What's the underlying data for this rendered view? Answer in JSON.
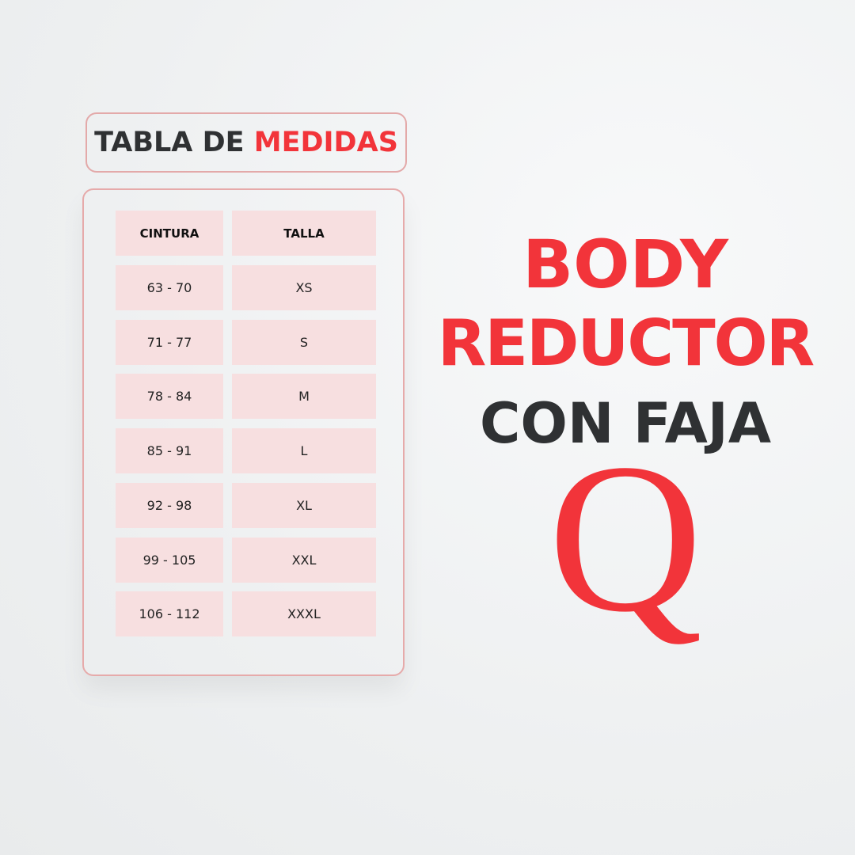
{
  "title": {
    "part1": "TABLA DE",
    "part2": "MEDIDAS"
  },
  "table": {
    "headers": [
      "CINTURA",
      "TALLA"
    ],
    "rows": [
      [
        "63 - 70",
        "XS"
      ],
      [
        "71 - 77",
        "S"
      ],
      [
        "78 - 84",
        "M"
      ],
      [
        "85 - 91",
        "L"
      ],
      [
        "92 - 98",
        "XL"
      ],
      [
        "99 - 105",
        "XXL"
      ],
      [
        "106 - 112",
        "XXXL"
      ]
    ]
  },
  "product": {
    "line1": "BODY",
    "line2": "REDUCTOR",
    "line3": "CON FAJA"
  },
  "logo": {
    "letter": "Q"
  },
  "colors": {
    "accent": "#f2343a",
    "dark": "#2f3133",
    "cell": "#f7dfe0",
    "border": "#e3a9a9"
  }
}
